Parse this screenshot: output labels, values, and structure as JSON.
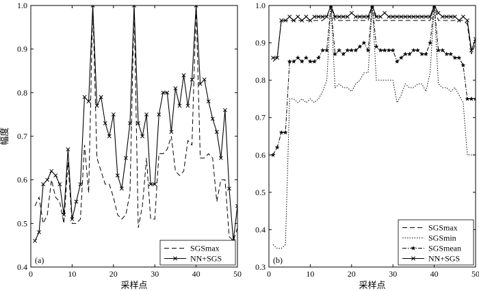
{
  "chart_data": [
    {
      "type": "line",
      "panel_label": "(a)",
      "xlabel": "采样点",
      "ylabel": "幅度",
      "xlim": [
        0,
        50
      ],
      "ylim": [
        0.4,
        1.0
      ],
      "xticks": [
        0,
        10,
        20,
        30,
        40,
        50
      ],
      "yticks": [
        0.4,
        0.5,
        0.6,
        0.7,
        0.8,
        0.9,
        1.0
      ],
      "ytick_format": 1,
      "legend_position": "bottom-right",
      "series": [
        {
          "name": "SGSmax",
          "style": "dashed",
          "marker": "none",
          "x": [
            1,
            2,
            3,
            4,
            5,
            6,
            7,
            8,
            9,
            10,
            11,
            12,
            13,
            14,
            15,
            16,
            17,
            18,
            19,
            20,
            21,
            22,
            23,
            24,
            25,
            26,
            27,
            28,
            29,
            30,
            31,
            32,
            33,
            34,
            35,
            36,
            37,
            38,
            39,
            40,
            41,
            42,
            43,
            44,
            45,
            46,
            47,
            48,
            49,
            50
          ],
          "values": [
            0.54,
            0.56,
            0.5,
            0.52,
            0.6,
            0.56,
            0.55,
            0.5,
            0.64,
            0.5,
            0.5,
            0.51,
            0.68,
            0.57,
            1.0,
            0.65,
            0.62,
            0.59,
            0.59,
            0.56,
            0.52,
            0.51,
            0.52,
            0.57,
            1.0,
            0.49,
            0.54,
            0.65,
            0.51,
            0.51,
            0.66,
            0.66,
            0.67,
            0.7,
            0.62,
            0.61,
            0.62,
            0.69,
            0.68,
            1.0,
            0.65,
            0.65,
            0.66,
            0.65,
            0.55,
            0.6,
            0.6,
            0.47,
            0.46,
            0.49
          ]
        },
        {
          "name": "NN+SGS",
          "style": "solid",
          "marker": "x",
          "x": [
            1,
            2,
            3,
            4,
            5,
            6,
            7,
            8,
            9,
            10,
            11,
            12,
            13,
            14,
            15,
            16,
            17,
            18,
            19,
            20,
            21,
            22,
            23,
            24,
            25,
            26,
            27,
            28,
            29,
            30,
            31,
            32,
            33,
            34,
            35,
            36,
            37,
            38,
            39,
            40,
            41,
            42,
            43,
            44,
            45,
            46,
            47,
            48,
            49,
            50
          ],
          "values": [
            0.46,
            0.48,
            0.59,
            0.6,
            0.62,
            0.61,
            0.59,
            0.52,
            0.67,
            0.51,
            0.55,
            0.59,
            0.79,
            0.78,
            1.0,
            0.77,
            0.79,
            0.73,
            0.7,
            0.75,
            0.61,
            0.58,
            0.65,
            0.73,
            1.0,
            0.73,
            0.7,
            0.75,
            0.59,
            0.59,
            0.75,
            0.8,
            0.8,
            0.71,
            0.81,
            0.77,
            0.84,
            0.77,
            0.83,
            1.0,
            0.82,
            0.83,
            0.78,
            0.74,
            0.71,
            0.65,
            0.76,
            0.58,
            0.46,
            0.54
          ]
        }
      ]
    },
    {
      "type": "line",
      "panel_label": "(b)",
      "xlabel": "采样点",
      "ylabel": "",
      "xlim": [
        0,
        50
      ],
      "ylim": [
        0.3,
        1.0
      ],
      "xticks": [
        0,
        10,
        20,
        30,
        40,
        50
      ],
      "yticks": [
        0.3,
        0.4,
        0.5,
        0.6,
        0.7,
        0.8,
        0.9,
        1.0
      ],
      "ytick_format": 1,
      "legend_position": "bottom-right",
      "series": [
        {
          "name": "SGSmax",
          "style": "dashed",
          "marker": "none",
          "x": [
            1,
            2,
            3,
            4,
            5,
            6,
            7,
            8,
            9,
            10,
            11,
            12,
            13,
            14,
            15,
            16,
            17,
            18,
            19,
            20,
            21,
            22,
            23,
            24,
            25,
            26,
            27,
            28,
            29,
            30,
            31,
            32,
            33,
            34,
            35,
            36,
            37,
            38,
            39,
            40,
            41,
            42,
            43,
            44,
            45,
            46,
            47,
            48,
            49,
            50
          ],
          "values": [
            0.85,
            0.86,
            0.96,
            0.96,
            0.96,
            0.96,
            0.96,
            0.96,
            0.96,
            0.96,
            0.96,
            0.96,
            0.96,
            0.97,
            1.0,
            0.96,
            0.96,
            0.96,
            0.96,
            0.96,
            0.96,
            0.96,
            0.96,
            0.96,
            1.0,
            0.96,
            0.96,
            0.96,
            0.96,
            0.96,
            0.96,
            0.96,
            0.96,
            0.96,
            0.96,
            0.96,
            0.96,
            0.96,
            0.96,
            1.0,
            0.96,
            0.96,
            0.96,
            0.96,
            0.96,
            0.96,
            0.96,
            0.95,
            0.87,
            0.9
          ]
        },
        {
          "name": "SGSmin",
          "style": "dotted",
          "marker": "none",
          "x": [
            1,
            2,
            3,
            4,
            5,
            6,
            7,
            8,
            9,
            10,
            11,
            12,
            13,
            14,
            15,
            16,
            17,
            18,
            19,
            20,
            21,
            22,
            23,
            24,
            25,
            26,
            27,
            28,
            29,
            30,
            31,
            32,
            33,
            34,
            35,
            36,
            37,
            38,
            39,
            40,
            41,
            42,
            43,
            44,
            45,
            46,
            47,
            48,
            49,
            50
          ],
          "values": [
            0.36,
            0.35,
            0.35,
            0.36,
            0.75,
            0.75,
            0.74,
            0.75,
            0.74,
            0.75,
            0.74,
            0.75,
            0.77,
            0.8,
            1.0,
            0.78,
            0.79,
            0.78,
            0.78,
            0.77,
            0.79,
            0.8,
            0.82,
            0.82,
            1.0,
            0.8,
            0.8,
            0.8,
            0.8,
            0.8,
            0.74,
            0.76,
            0.79,
            0.78,
            0.78,
            0.79,
            0.79,
            0.77,
            0.82,
            1.0,
            0.79,
            0.78,
            0.78,
            0.77,
            0.78,
            0.76,
            0.74,
            0.6,
            0.6,
            0.6
          ]
        },
        {
          "name": "SGSmean",
          "style": "dashdot",
          "marker": "star",
          "x": [
            1,
            2,
            3,
            4,
            5,
            6,
            7,
            8,
            9,
            10,
            11,
            12,
            13,
            14,
            15,
            16,
            17,
            18,
            19,
            20,
            21,
            22,
            23,
            24,
            25,
            26,
            27,
            28,
            29,
            30,
            31,
            32,
            33,
            34,
            35,
            36,
            37,
            38,
            39,
            40,
            41,
            42,
            43,
            44,
            45,
            46,
            47,
            48,
            49,
            50
          ],
          "values": [
            0.6,
            0.62,
            0.66,
            0.66,
            0.85,
            0.85,
            0.86,
            0.85,
            0.86,
            0.85,
            0.85,
            0.86,
            0.88,
            0.88,
            1.0,
            0.87,
            0.88,
            0.87,
            0.88,
            0.88,
            0.88,
            0.89,
            0.9,
            0.88,
            1.0,
            0.89,
            0.88,
            0.88,
            0.88,
            0.88,
            0.85,
            0.86,
            0.87,
            0.87,
            0.88,
            0.88,
            0.87,
            0.87,
            0.9,
            1.0,
            0.88,
            0.88,
            0.87,
            0.87,
            0.86,
            0.86,
            0.84,
            0.75,
            0.75,
            0.75
          ]
        },
        {
          "name": "NN+SGS",
          "style": "solid",
          "marker": "x",
          "x": [
            1,
            2,
            3,
            4,
            5,
            6,
            7,
            8,
            9,
            10,
            11,
            12,
            13,
            14,
            15,
            16,
            17,
            18,
            19,
            20,
            21,
            22,
            23,
            24,
            25,
            26,
            27,
            28,
            29,
            30,
            31,
            32,
            33,
            34,
            35,
            36,
            37,
            38,
            39,
            40,
            41,
            42,
            43,
            44,
            45,
            46,
            47,
            48,
            49,
            50
          ],
          "values": [
            0.86,
            0.86,
            0.96,
            0.96,
            0.97,
            0.96,
            0.97,
            0.96,
            0.97,
            0.96,
            0.97,
            0.97,
            0.97,
            0.97,
            1.0,
            0.97,
            0.97,
            0.97,
            0.97,
            0.98,
            0.97,
            0.97,
            0.97,
            0.97,
            1.0,
            0.97,
            0.97,
            0.98,
            0.97,
            0.97,
            0.97,
            0.97,
            0.97,
            0.97,
            0.97,
            0.97,
            0.97,
            0.97,
            0.97,
            1.0,
            0.98,
            0.97,
            0.97,
            0.97,
            0.97,
            0.96,
            0.97,
            0.96,
            0.88,
            0.91
          ]
        }
      ]
    }
  ]
}
